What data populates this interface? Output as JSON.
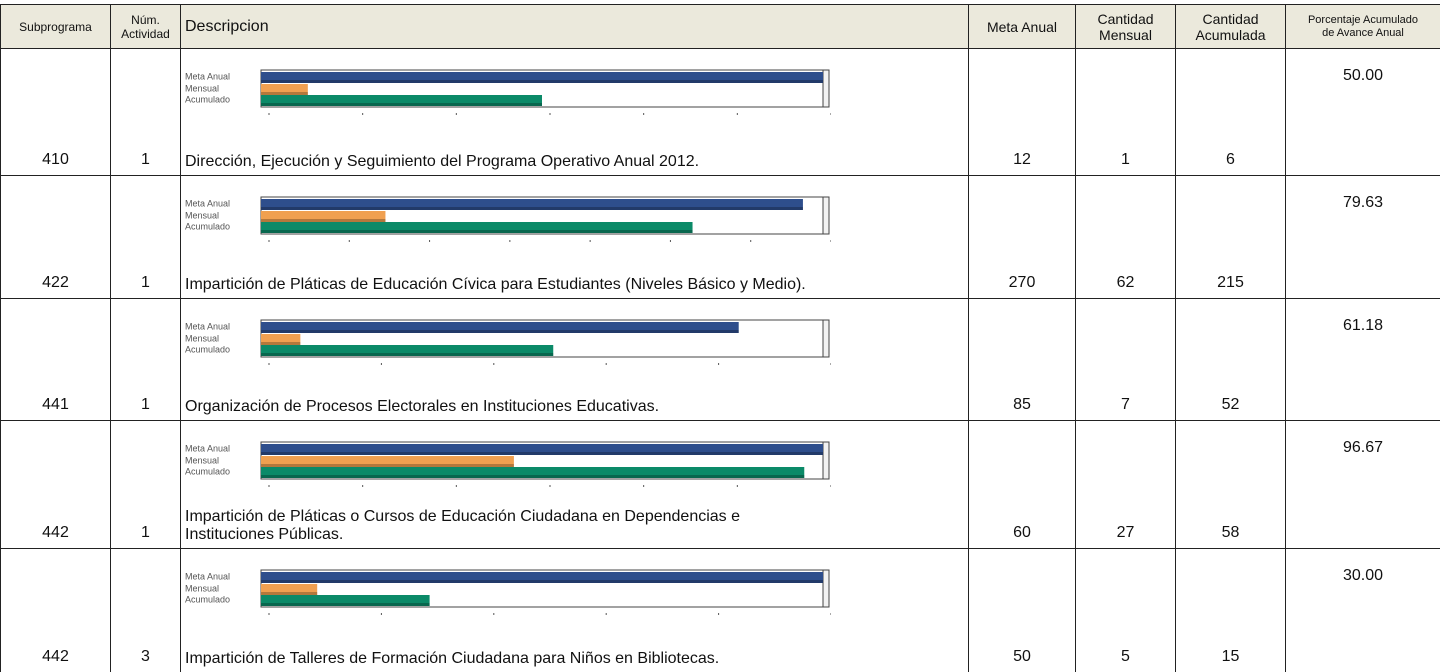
{
  "table": {
    "headers": [
      [
        "Subprograma"
      ],
      [
        "Núm.",
        "Actividad"
      ],
      [
        "Descripcion"
      ],
      [
        "Meta Anual"
      ],
      [
        "Cantidad",
        "Mensual"
      ],
      [
        "Cantidad",
        "Acumulada"
      ],
      [
        "Porcentaje Acumulado",
        "de Avance Anual"
      ]
    ],
    "chart_labels": [
      "Meta Anual",
      "Mensual",
      "Acumulado"
    ],
    "chart_colors": [
      "#2e4e8c",
      "#f0a050",
      "#0b8a68"
    ],
    "rows": [
      {
        "subprograma": "410",
        "actividad": "1",
        "descripcion": [
          "Dirección, Ejecución y Seguimiento del Programa Operativo Anual 2012."
        ],
        "meta": 12,
        "mensual": 1,
        "acumulada": 6,
        "porcentaje": "50.00",
        "chart": {
          "type": "bar",
          "xlim": [
            0,
            12
          ],
          "xticks": [
            0,
            2,
            4,
            6,
            8,
            10,
            12
          ]
        }
      },
      {
        "subprograma": "422",
        "actividad": "1",
        "descripcion": [
          "Impartición de Pláticas de Educación Cívica para Estudiantes (Niveles Básico y Medio)."
        ],
        "meta": 270,
        "mensual": 62,
        "acumulada": 215,
        "porcentaje": "79.63",
        "chart": {
          "type": "bar",
          "xlim": [
            0,
            280
          ],
          "xticks": [
            0,
            40,
            80,
            120,
            160,
            200,
            240,
            280
          ]
        }
      },
      {
        "subprograma": "441",
        "actividad": "1",
        "descripcion": [
          "Organización de Procesos Electorales en Instituciones Educativas."
        ],
        "meta": 85,
        "mensual": 7,
        "acumulada": 52,
        "porcentaje": "61.18",
        "chart": {
          "type": "bar",
          "xlim": [
            0,
            100
          ],
          "xticks": [
            0,
            20,
            40,
            60,
            80,
            100
          ]
        }
      },
      {
        "subprograma": "442",
        "actividad": "1",
        "descripcion": [
          "Impartición de Pláticas o Cursos de Educación Ciudadana en Dependencias e",
          "Instituciones Públicas."
        ],
        "meta": 60,
        "mensual": 27,
        "acumulada": 58,
        "porcentaje": "96.67",
        "chart": {
          "type": "bar",
          "xlim": [
            0,
            60
          ],
          "xticks": [
            0,
            10,
            20,
            30,
            40,
            50,
            60
          ]
        }
      },
      {
        "subprograma": "442",
        "actividad": "3",
        "descripcion": [
          "Impartición de Talleres de Formación Ciudadana para Niños en Bibliotecas."
        ],
        "meta": 50,
        "mensual": 5,
        "acumulada": 15,
        "porcentaje": "30.00",
        "chart": {
          "type": "bar",
          "xlim": [
            0,
            50
          ],
          "xticks": [
            0,
            10,
            20,
            30,
            40,
            50
          ]
        }
      }
    ]
  }
}
